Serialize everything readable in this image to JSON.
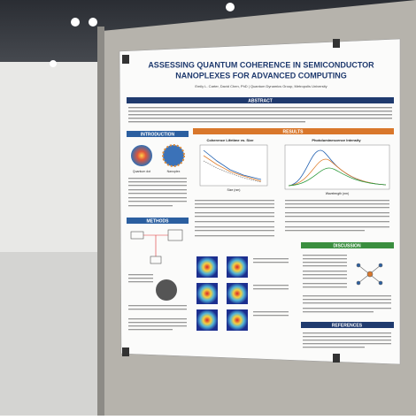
{
  "poster": {
    "title_line1": "ASSESSING QUANTUM COHERENCE IN SEMICONDUCTOR",
    "title_line2": "NANOPLEXES FOR ADVANCED COMPUTING",
    "authors": "Emily L. Carter, David Chen, PhD | Quantum Dynamics Group, Metropolis University",
    "sections": {
      "abstract": "ABSTRACT",
      "introduction": "INTRODUCTION",
      "results": "RESULTS",
      "methods": "METHODS",
      "discussion": "DISCUSSION",
      "references": "REFERENCES"
    },
    "intro_captions": [
      "Quantum dot",
      "Nanoplex"
    ],
    "figures": [
      {
        "title": "Coherence Lifetime vs. Size",
        "x_label": "Size (nm)"
      },
      {
        "title": "Photoluminescence Intensity",
        "x_label": "Wavelength (nm)"
      }
    ]
  }
}
